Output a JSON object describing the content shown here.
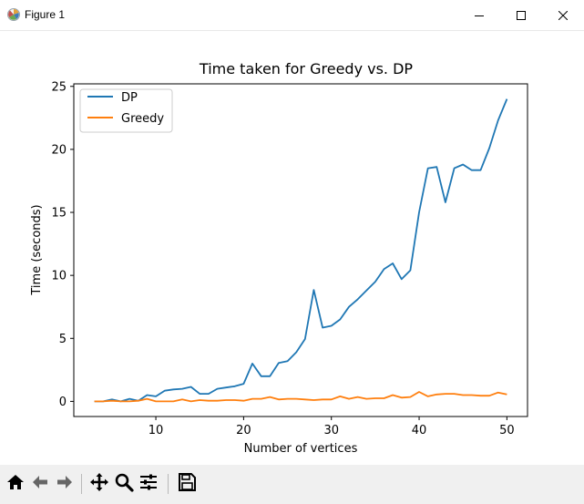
{
  "window": {
    "title": "Figure 1"
  },
  "icons": {
    "app": "matplotlib-figure-icon",
    "minimize": "minimize-icon",
    "maximize": "maximize-icon",
    "close": "close-icon"
  },
  "toolbar": {
    "buttons": [
      "home-icon",
      "back-arrow-icon",
      "forward-arrow-icon",
      "pan-icon",
      "zoom-icon",
      "subplots-icon",
      "save-icon"
    ]
  },
  "colors": {
    "dp": "#1f77b4",
    "greedy": "#ff7f0e",
    "toolbar_bg": "#f0f0f0"
  },
  "chart_data": {
    "type": "line",
    "title": "Time taken for Greedy vs. DP",
    "xlabel": "Number of vertices",
    "ylabel": "Time (seconds)",
    "xlim": [
      0.65,
      52.35
    ],
    "ylim": [
      -1.2,
      25.2
    ],
    "xticks": [
      10,
      20,
      30,
      40,
      50
    ],
    "yticks": [
      0,
      5,
      10,
      15,
      20,
      25
    ],
    "grid": false,
    "legend_position": "top-left",
    "x": [
      3,
      4,
      5,
      6,
      7,
      8,
      9,
      10,
      11,
      12,
      13,
      14,
      15,
      16,
      17,
      18,
      19,
      20,
      21,
      22,
      23,
      24,
      25,
      26,
      27,
      28,
      29,
      30,
      31,
      32,
      33,
      34,
      35,
      36,
      37,
      38,
      39,
      40,
      41,
      42,
      43,
      44,
      45,
      46,
      47,
      48,
      49,
      50
    ],
    "series": [
      {
        "name": "DP",
        "values": [
          0.0,
          0.0,
          0.15,
          0.0,
          0.2,
          0.05,
          0.5,
          0.4,
          0.85,
          0.95,
          1.0,
          1.15,
          0.6,
          0.6,
          1.0,
          1.1,
          1.2,
          1.4,
          3.0,
          2.0,
          2.0,
          3.05,
          3.2,
          3.9,
          4.95,
          8.85,
          5.85,
          6.0,
          6.5,
          7.5,
          8.1,
          8.8,
          9.5,
          10.5,
          10.95,
          9.7,
          10.4,
          15.0,
          18.5,
          18.6,
          15.8,
          18.5,
          18.8,
          18.35,
          18.35,
          20.1,
          22.3,
          24.0
        ]
      },
      {
        "name": "Greedy",
        "values": [
          0.0,
          0.0,
          0.05,
          0.0,
          0.0,
          0.05,
          0.2,
          0.0,
          0.0,
          0.0,
          0.15,
          0.0,
          0.1,
          0.05,
          0.05,
          0.1,
          0.1,
          0.05,
          0.2,
          0.2,
          0.35,
          0.15,
          0.2,
          0.2,
          0.15,
          0.1,
          0.15,
          0.15,
          0.4,
          0.2,
          0.35,
          0.2,
          0.25,
          0.25,
          0.5,
          0.3,
          0.35,
          0.75,
          0.4,
          0.55,
          0.6,
          0.6,
          0.5,
          0.5,
          0.45,
          0.45,
          0.7,
          0.55
        ]
      }
    ]
  }
}
